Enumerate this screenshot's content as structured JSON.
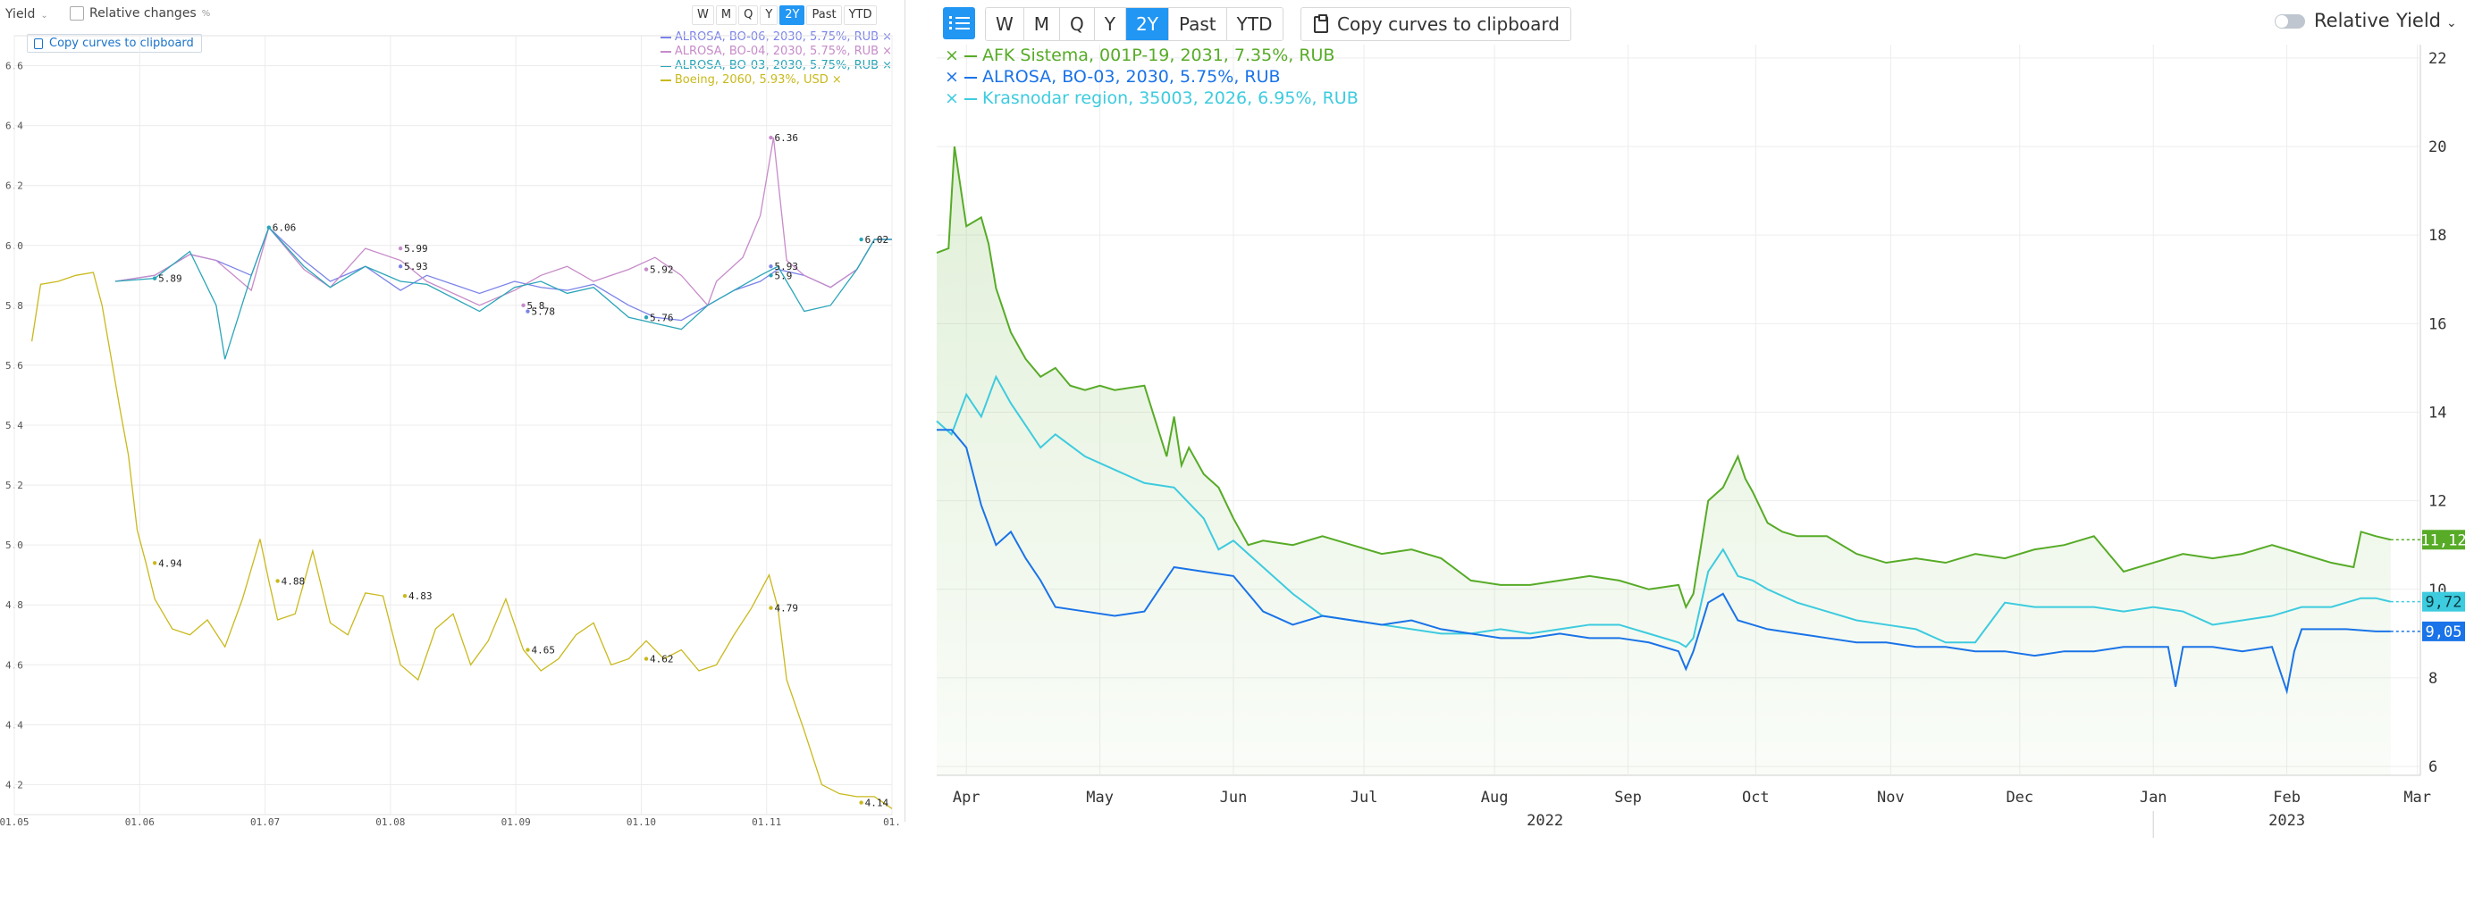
{
  "left": {
    "toolbar": {
      "yield_label": "Yield",
      "relative_label": "Relative changes",
      "relative_unit": "%",
      "copy_label": "Copy curves to clipboard",
      "periods": [
        "W",
        "M",
        "Q",
        "Y",
        "2Y",
        "Past",
        "YTD"
      ],
      "active_period": "2Y"
    },
    "legend": [
      {
        "label": "ALROSA, BO-06, 2030, 5.75%, RUB",
        "color": "#7b83e8",
        "close": "×"
      },
      {
        "label": "ALROSA, BO-04, 2030, 5.75%, RUB",
        "color": "#c78bc9",
        "close": "×"
      },
      {
        "label": "ALROSA, BO-03, 2030, 5.75%, RUB",
        "color": "#2aa5b8",
        "close": "×"
      },
      {
        "label": "Boeing, 2060, 5.93%, USD",
        "color": "#c9b91c",
        "close": "×"
      }
    ]
  },
  "right": {
    "toolbar": {
      "periods": [
        "W",
        "M",
        "Q",
        "Y",
        "2Y",
        "Past",
        "YTD"
      ],
      "active_period": "2Y",
      "copy_label": "Copy curves to clipboard",
      "relative_label": "Relative",
      "yield_label": "Yield"
    },
    "legend": [
      {
        "label": "AFK Sistema, 001P-19, 2031, 7.35%, RUB",
        "color": "#57ab27",
        "close": "×"
      },
      {
        "label": "ALROSA, BO-03, 2030, 5.75%, RUB",
        "color": "#1a73e8",
        "close": "×"
      },
      {
        "label": "Krasnodar region, 35003, 2026, 6.95%, RUB",
        "color": "#3dcbdf",
        "close": "×"
      }
    ]
  },
  "chart_data": [
    {
      "type": "line",
      "ylim": [
        4.1,
        6.7
      ],
      "y_ticks": [
        "4.2",
        "4.4",
        "4.6",
        "4.8",
        "5.0",
        "5.2",
        "5.4",
        "5.6",
        "5.8",
        "6.0",
        "6.2",
        "6.4",
        "6.6"
      ],
      "x_ticks": [
        "01.05",
        "01.06",
        "01.07",
        "01.08",
        "01.09",
        "01.10",
        "01.11",
        "01."
      ],
      "grid": true,
      "legend_position": "top-right",
      "series": [
        {
          "name": "ALROSA, BO-06, 2030, 5.75%, RUB",
          "color": "#7b83e8",
          "x": [
            0.115,
            0.16,
            0.2,
            0.23,
            0.27,
            0.29,
            0.33,
            0.36,
            0.4,
            0.44,
            0.47,
            0.53,
            0.57,
            0.6,
            0.63,
            0.66,
            0.7,
            0.73,
            0.76,
            0.79,
            0.82,
            0.85,
            0.87,
            0.9,
            0.93,
            0.96,
            0.98,
            1.0
          ],
          "y": [
            5.88,
            5.9,
            5.97,
            5.95,
            5.9,
            6.06,
            5.95,
            5.88,
            5.93,
            5.85,
            5.9,
            5.84,
            5.88,
            5.86,
            5.85,
            5.87,
            5.8,
            5.76,
            5.75,
            5.8,
            5.85,
            5.88,
            5.92,
            5.9,
            5.86,
            5.92,
            6.02,
            6.02
          ]
        },
        {
          "name": "ALROSA, BO-04, 2030, 5.75%, RUB",
          "color": "#c78bc9",
          "x": [
            0.115,
            0.16,
            0.2,
            0.23,
            0.27,
            0.29,
            0.33,
            0.36,
            0.4,
            0.44,
            0.47,
            0.53,
            0.57,
            0.6,
            0.63,
            0.66,
            0.7,
            0.73,
            0.76,
            0.79,
            0.8,
            0.83,
            0.85,
            0.865,
            0.88,
            0.9,
            0.93,
            0.96,
            0.98,
            1.0
          ],
          "y": [
            5.88,
            5.9,
            5.97,
            5.95,
            5.85,
            6.06,
            5.92,
            5.86,
            5.99,
            5.95,
            5.88,
            5.8,
            5.85,
            5.9,
            5.93,
            5.88,
            5.92,
            5.96,
            5.9,
            5.8,
            5.88,
            5.96,
            6.1,
            6.36,
            5.95,
            5.9,
            5.86,
            5.92,
            6.02,
            6.02
          ]
        },
        {
          "name": "ALROSA, BO-03, 2030, 5.75%, RUB",
          "color": "#2aa5b8",
          "x": [
            0.115,
            0.16,
            0.2,
            0.23,
            0.24,
            0.27,
            0.29,
            0.33,
            0.36,
            0.4,
            0.44,
            0.47,
            0.53,
            0.57,
            0.6,
            0.63,
            0.66,
            0.7,
            0.73,
            0.76,
            0.79,
            0.82,
            0.85,
            0.87,
            0.9,
            0.93,
            0.96,
            0.98,
            1.0
          ],
          "y": [
            5.88,
            5.89,
            5.98,
            5.8,
            5.62,
            5.9,
            6.06,
            5.93,
            5.86,
            5.93,
            5.88,
            5.87,
            5.78,
            5.86,
            5.88,
            5.84,
            5.86,
            5.76,
            5.74,
            5.72,
            5.8,
            5.85,
            5.9,
            5.93,
            5.78,
            5.8,
            5.92,
            6.02,
            6.02
          ]
        },
        {
          "name": "Boeing, 2060, 5.93%, USD",
          "color": "#c9b91c",
          "x": [
            0.02,
            0.03,
            0.05,
            0.07,
            0.09,
            0.1,
            0.12,
            0.13,
            0.14,
            0.15,
            0.16,
            0.18,
            0.2,
            0.22,
            0.24,
            0.26,
            0.28,
            0.29,
            0.3,
            0.32,
            0.34,
            0.36,
            0.38,
            0.4,
            0.42,
            0.44,
            0.46,
            0.48,
            0.5,
            0.52,
            0.54,
            0.56,
            0.58,
            0.6,
            0.62,
            0.64,
            0.66,
            0.68,
            0.7,
            0.72,
            0.74,
            0.76,
            0.78,
            0.8,
            0.82,
            0.84,
            0.86,
            0.87,
            0.88,
            0.9,
            0.92,
            0.94,
            0.96,
            0.98,
            0.99,
            1.0
          ],
          "y": [
            5.68,
            5.87,
            5.88,
            5.9,
            5.91,
            5.8,
            5.46,
            5.3,
            5.05,
            4.94,
            4.82,
            4.72,
            4.7,
            4.75,
            4.66,
            4.82,
            5.02,
            4.88,
            4.75,
            4.77,
            4.98,
            4.74,
            4.7,
            4.84,
            4.83,
            4.6,
            4.55,
            4.72,
            4.77,
            4.6,
            4.68,
            4.82,
            4.65,
            4.58,
            4.62,
            4.7,
            4.74,
            4.6,
            4.62,
            4.68,
            4.62,
            4.65,
            4.58,
            4.6,
            4.7,
            4.79,
            4.9,
            4.79,
            4.55,
            4.38,
            4.2,
            4.17,
            4.16,
            4.16,
            4.14,
            4.12
          ]
        }
      ],
      "data_labels": [
        {
          "series": 2,
          "x": 0.16,
          "y": 5.89,
          "text": "5.89"
        },
        {
          "series": 2,
          "x": 0.29,
          "y": 6.06,
          "text": "6.06"
        },
        {
          "series": 1,
          "x": 0.44,
          "y": 5.99,
          "text": "5.99"
        },
        {
          "series": 0,
          "x": 0.44,
          "y": 5.93,
          "text": "5.93"
        },
        {
          "series": 1,
          "x": 0.58,
          "y": 5.8,
          "text": "5.8"
        },
        {
          "series": 0,
          "x": 0.585,
          "y": 5.78,
          "text": "5.78"
        },
        {
          "series": 1,
          "x": 0.72,
          "y": 5.92,
          "text": "5.92"
        },
        {
          "series": 2,
          "x": 0.72,
          "y": 5.76,
          "text": "5.76"
        },
        {
          "series": 1,
          "x": 0.862,
          "y": 6.36,
          "text": "6.36"
        },
        {
          "series": 0,
          "x": 0.862,
          "y": 5.93,
          "text": "5.93"
        },
        {
          "series": 2,
          "x": 0.862,
          "y": 5.9,
          "text": "5.9"
        },
        {
          "series": 2,
          "x": 0.965,
          "y": 6.02,
          "text": "6.02"
        },
        {
          "series": 3,
          "x": 0.16,
          "y": 4.94,
          "text": "4.94"
        },
        {
          "series": 3,
          "x": 0.3,
          "y": 4.88,
          "text": "4.88"
        },
        {
          "series": 3,
          "x": 0.445,
          "y": 4.83,
          "text": "4.83"
        },
        {
          "series": 3,
          "x": 0.585,
          "y": 4.65,
          "text": "4.65"
        },
        {
          "series": 3,
          "x": 0.72,
          "y": 4.62,
          "text": "4.62"
        },
        {
          "series": 3,
          "x": 0.862,
          "y": 4.79,
          "text": "4.79"
        },
        {
          "series": 3,
          "x": 0.965,
          "y": 4.14,
          "text": "4.14"
        }
      ]
    },
    {
      "type": "area",
      "ylim": [
        5.8,
        22.3
      ],
      "y_ticks": [
        "22",
        "20",
        "18",
        "16",
        "14",
        "12",
        "10",
        "8",
        "6"
      ],
      "y_tick_values": [
        22,
        20,
        18,
        16,
        14,
        12,
        10,
        8,
        6
      ],
      "x_ticks": [
        "Apr",
        "May",
        "Jun",
        "Jul",
        "Aug",
        "Sep",
        "Oct",
        "Nov",
        "Dec",
        "Jan",
        "Feb",
        "Mar"
      ],
      "x_tick_positions": [
        0.02,
        0.11,
        0.2,
        0.288,
        0.376,
        0.466,
        0.552,
        0.643,
        0.73,
        0.82,
        0.91,
        0.998
      ],
      "year_labels": [
        {
          "text": "2022",
          "x": 0.41
        },
        {
          "text": "2023",
          "x": 0.91
        }
      ],
      "year_separator_x": 0.82,
      "grid": true,
      "legend_position": "top-left",
      "last_values": [
        {
          "series": 0,
          "text": "11,12",
          "value": 11.12
        },
        {
          "series": 2,
          "text": "9,72",
          "value": 9.72
        },
        {
          "series": 1,
          "text": "9,05",
          "value": 9.05
        }
      ],
      "series": [
        {
          "name": "AFK Sistema, 001P-19, 2031, 7.35%, RUB",
          "color": "#57ab27",
          "x": [
            0.0,
            0.008,
            0.012,
            0.02,
            0.03,
            0.035,
            0.04,
            0.05,
            0.06,
            0.07,
            0.08,
            0.09,
            0.1,
            0.11,
            0.12,
            0.14,
            0.155,
            0.16,
            0.165,
            0.17,
            0.18,
            0.19,
            0.2,
            0.21,
            0.22,
            0.24,
            0.26,
            0.28,
            0.3,
            0.32,
            0.34,
            0.36,
            0.38,
            0.4,
            0.42,
            0.44,
            0.46,
            0.48,
            0.5,
            0.505,
            0.51,
            0.52,
            0.53,
            0.54,
            0.545,
            0.55,
            0.56,
            0.57,
            0.58,
            0.6,
            0.62,
            0.64,
            0.66,
            0.68,
            0.7,
            0.72,
            0.74,
            0.76,
            0.78,
            0.8,
            0.82,
            0.84,
            0.86,
            0.88,
            0.9,
            0.92,
            0.94,
            0.955,
            0.96,
            0.97,
            0.98
          ],
          "y": [
            17.6,
            17.7,
            20.0,
            18.2,
            18.4,
            17.8,
            16.8,
            15.8,
            15.2,
            14.8,
            15.0,
            14.6,
            14.5,
            14.6,
            14.5,
            14.6,
            13.0,
            13.9,
            12.8,
            13.2,
            12.6,
            12.3,
            11.6,
            11.0,
            11.1,
            11.0,
            11.2,
            11.0,
            10.8,
            10.9,
            10.7,
            10.2,
            10.1,
            10.1,
            10.2,
            10.3,
            10.2,
            10.0,
            10.1,
            9.6,
            9.9,
            12.0,
            12.3,
            13.0,
            12.5,
            12.2,
            11.5,
            11.3,
            11.2,
            11.2,
            10.8,
            10.6,
            10.7,
            10.6,
            10.8,
            10.7,
            10.9,
            11.0,
            11.2,
            10.4,
            10.6,
            10.8,
            10.7,
            10.8,
            11.0,
            10.8,
            10.6,
            10.5,
            11.3,
            11.2,
            11.12
          ]
        },
        {
          "name": "ALROSA, BO-03, 2030, 5.75%, RUB",
          "color": "#1a73e8",
          "x": [
            0.0,
            0.01,
            0.02,
            0.03,
            0.04,
            0.05,
            0.06,
            0.07,
            0.08,
            0.1,
            0.12,
            0.14,
            0.16,
            0.18,
            0.2,
            0.22,
            0.24,
            0.26,
            0.28,
            0.3,
            0.32,
            0.34,
            0.36,
            0.38,
            0.4,
            0.42,
            0.44,
            0.46,
            0.48,
            0.5,
            0.505,
            0.51,
            0.52,
            0.53,
            0.54,
            0.55,
            0.56,
            0.58,
            0.6,
            0.62,
            0.64,
            0.66,
            0.68,
            0.7,
            0.72,
            0.74,
            0.76,
            0.78,
            0.8,
            0.82,
            0.83,
            0.835,
            0.84,
            0.86,
            0.88,
            0.9,
            0.91,
            0.915,
            0.92,
            0.93,
            0.95,
            0.97,
            0.98
          ],
          "y": [
            13.6,
            13.6,
            13.2,
            11.9,
            11.0,
            11.3,
            10.7,
            10.2,
            9.6,
            9.5,
            9.4,
            9.5,
            10.5,
            10.4,
            10.3,
            9.5,
            9.2,
            9.4,
            9.3,
            9.2,
            9.3,
            9.1,
            9.0,
            8.9,
            8.9,
            9.0,
            8.9,
            8.9,
            8.8,
            8.6,
            8.2,
            8.6,
            9.7,
            9.9,
            9.3,
            9.2,
            9.1,
            9.0,
            8.9,
            8.8,
            8.8,
            8.7,
            8.7,
            8.6,
            8.6,
            8.5,
            8.6,
            8.6,
            8.7,
            8.7,
            8.7,
            7.8,
            8.7,
            8.7,
            8.6,
            8.7,
            7.7,
            8.6,
            9.1,
            9.1,
            9.1,
            9.05,
            9.05
          ]
        },
        {
          "name": "Krasnodar region, 35003, 2026, 6.95%, RUB",
          "color": "#3dcbdf",
          "x": [
            0.0,
            0.01,
            0.02,
            0.03,
            0.04,
            0.05,
            0.06,
            0.07,
            0.08,
            0.1,
            0.12,
            0.14,
            0.16,
            0.18,
            0.19,
            0.2,
            0.22,
            0.24,
            0.26,
            0.28,
            0.3,
            0.32,
            0.34,
            0.36,
            0.38,
            0.4,
            0.42,
            0.44,
            0.46,
            0.48,
            0.5,
            0.505,
            0.51,
            0.52,
            0.53,
            0.54,
            0.55,
            0.56,
            0.58,
            0.6,
            0.62,
            0.64,
            0.66,
            0.68,
            0.7,
            0.72,
            0.74,
            0.76,
            0.78,
            0.8,
            0.82,
            0.84,
            0.86,
            0.88,
            0.9,
            0.92,
            0.94,
            0.96,
            0.97,
            0.98
          ],
          "y": [
            13.8,
            13.5,
            14.4,
            13.9,
            14.8,
            14.2,
            13.7,
            13.2,
            13.5,
            13.0,
            12.7,
            12.4,
            12.3,
            11.6,
            10.9,
            11.1,
            10.5,
            9.9,
            9.4,
            9.3,
            9.2,
            9.1,
            9.0,
            9.0,
            9.1,
            9.0,
            9.1,
            9.2,
            9.2,
            9.0,
            8.8,
            8.7,
            8.9,
            10.4,
            10.9,
            10.3,
            10.2,
            10.0,
            9.7,
            9.5,
            9.3,
            9.2,
            9.1,
            8.8,
            8.8,
            9.7,
            9.6,
            9.6,
            9.6,
            9.5,
            9.6,
            9.5,
            9.2,
            9.3,
            9.4,
            9.6,
            9.6,
            9.8,
            9.8,
            9.72
          ]
        }
      ]
    }
  ]
}
